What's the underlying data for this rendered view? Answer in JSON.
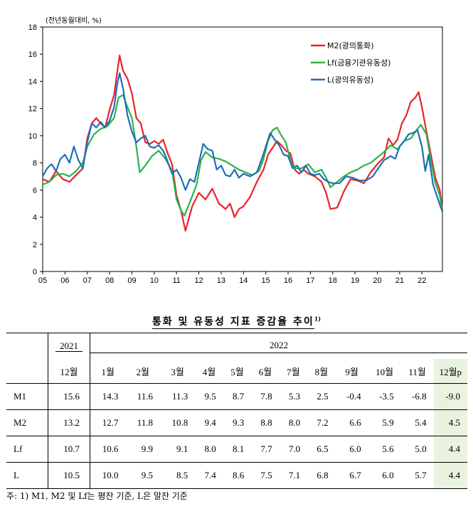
{
  "chart_data": {
    "type": "line",
    "unit_label": "(전년동월대비, %)",
    "ylim": [
      0,
      18
    ],
    "yticks": [
      0,
      2,
      4,
      6,
      8,
      10,
      12,
      14,
      16,
      18
    ],
    "xlim": [
      2005,
      2022.917
    ],
    "xtick_labels": [
      "05",
      "06",
      "07",
      "08",
      "09",
      "10",
      "11",
      "12",
      "13",
      "14",
      "15",
      "16",
      "17",
      "18",
      "19",
      "20",
      "21",
      "22"
    ],
    "legend_position": "top-right",
    "series": [
      {
        "name": "M2(광의통화)",
        "color": "#e8232a",
        "points": [
          [
            2005.0,
            6.8
          ],
          [
            2005.3,
            6.6
          ],
          [
            2005.6,
            7.4
          ],
          [
            2005.9,
            6.8
          ],
          [
            2006.2,
            6.6
          ],
          [
            2006.5,
            7.1
          ],
          [
            2006.8,
            7.6
          ],
          [
            2007.0,
            9.8
          ],
          [
            2007.2,
            10.9
          ],
          [
            2007.4,
            11.3
          ],
          [
            2007.6,
            10.9
          ],
          [
            2007.8,
            10.6
          ],
          [
            2008.0,
            11.9
          ],
          [
            2008.2,
            13.0
          ],
          [
            2008.35,
            14.8
          ],
          [
            2008.45,
            15.9
          ],
          [
            2008.6,
            14.8
          ],
          [
            2008.8,
            14.2
          ],
          [
            2009.0,
            13.1
          ],
          [
            2009.2,
            11.3
          ],
          [
            2009.4,
            10.9
          ],
          [
            2009.6,
            9.5
          ],
          [
            2009.8,
            9.4
          ],
          [
            2010.0,
            9.6
          ],
          [
            2010.2,
            9.4
          ],
          [
            2010.4,
            9.7
          ],
          [
            2010.6,
            8.7
          ],
          [
            2010.8,
            7.9
          ],
          [
            2011.0,
            5.6
          ],
          [
            2011.2,
            4.5
          ],
          [
            2011.4,
            3.0
          ],
          [
            2011.5,
            3.6
          ],
          [
            2011.7,
            4.8
          ],
          [
            2012.0,
            5.8
          ],
          [
            2012.3,
            5.3
          ],
          [
            2012.6,
            6.1
          ],
          [
            2012.9,
            5.0
          ],
          [
            2013.2,
            4.6
          ],
          [
            2013.4,
            5.0
          ],
          [
            2013.6,
            4.0
          ],
          [
            2013.8,
            4.6
          ],
          [
            2014.0,
            4.8
          ],
          [
            2014.3,
            5.5
          ],
          [
            2014.6,
            6.6
          ],
          [
            2014.9,
            7.5
          ],
          [
            2015.1,
            8.6
          ],
          [
            2015.3,
            9.1
          ],
          [
            2015.5,
            9.6
          ],
          [
            2015.7,
            9.3
          ],
          [
            2015.9,
            8.9
          ],
          [
            2016.1,
            8.7
          ],
          [
            2016.3,
            7.5
          ],
          [
            2016.5,
            7.2
          ],
          [
            2016.7,
            7.5
          ],
          [
            2016.9,
            7.2
          ],
          [
            2017.2,
            7.0
          ],
          [
            2017.5,
            6.6
          ],
          [
            2017.7,
            5.8
          ],
          [
            2017.9,
            4.6
          ],
          [
            2018.2,
            4.7
          ],
          [
            2018.5,
            5.9
          ],
          [
            2018.8,
            6.8
          ],
          [
            2019.1,
            6.7
          ],
          [
            2019.4,
            6.5
          ],
          [
            2019.7,
            7.3
          ],
          [
            2020.0,
            7.9
          ],
          [
            2020.3,
            8.4
          ],
          [
            2020.5,
            9.8
          ],
          [
            2020.7,
            9.3
          ],
          [
            2020.9,
            9.7
          ],
          [
            2021.1,
            10.9
          ],
          [
            2021.3,
            11.5
          ],
          [
            2021.5,
            12.5
          ],
          [
            2021.7,
            12.8
          ],
          [
            2021.85,
            13.2
          ],
          [
            2022.0,
            12.1
          ],
          [
            2022.2,
            10.3
          ],
          [
            2022.4,
            8.6
          ],
          [
            2022.6,
            6.9
          ],
          [
            2022.8,
            6.0
          ],
          [
            2022.917,
            4.5
          ]
        ]
      },
      {
        "name": "Lf(금융기관유동성)",
        "color": "#2bb24c",
        "points": [
          [
            2005.0,
            6.4
          ],
          [
            2005.3,
            6.6
          ],
          [
            2005.6,
            7.1
          ],
          [
            2005.9,
            7.2
          ],
          [
            2006.2,
            7.0
          ],
          [
            2006.5,
            7.4
          ],
          [
            2006.8,
            8.0
          ],
          [
            2007.0,
            9.2
          ],
          [
            2007.3,
            10.1
          ],
          [
            2007.6,
            10.5
          ],
          [
            2007.9,
            10.7
          ],
          [
            2008.2,
            11.3
          ],
          [
            2008.4,
            12.8
          ],
          [
            2008.6,
            13.0
          ],
          [
            2008.8,
            12.1
          ],
          [
            2009.0,
            11.3
          ],
          [
            2009.2,
            9.2
          ],
          [
            2009.35,
            7.3
          ],
          [
            2009.6,
            7.8
          ],
          [
            2009.9,
            8.5
          ],
          [
            2010.2,
            8.9
          ],
          [
            2010.5,
            8.3
          ],
          [
            2010.8,
            7.4
          ],
          [
            2011.0,
            5.3
          ],
          [
            2011.2,
            4.5
          ],
          [
            2011.35,
            4.1
          ],
          [
            2011.6,
            5.1
          ],
          [
            2011.9,
            6.4
          ],
          [
            2012.1,
            8.2
          ],
          [
            2012.3,
            8.8
          ],
          [
            2012.6,
            8.4
          ],
          [
            2012.9,
            8.3
          ],
          [
            2013.2,
            8.1
          ],
          [
            2013.5,
            7.8
          ],
          [
            2013.8,
            7.5
          ],
          [
            2014.1,
            7.3
          ],
          [
            2014.4,
            7.1
          ],
          [
            2014.7,
            7.4
          ],
          [
            2014.9,
            8.3
          ],
          [
            2015.1,
            9.6
          ],
          [
            2015.3,
            10.4
          ],
          [
            2015.5,
            10.6
          ],
          [
            2015.7,
            10.0
          ],
          [
            2015.9,
            9.5
          ],
          [
            2016.1,
            8.2
          ],
          [
            2016.3,
            7.6
          ],
          [
            2016.6,
            7.6
          ],
          [
            2016.9,
            7.9
          ],
          [
            2017.2,
            7.3
          ],
          [
            2017.5,
            7.5
          ],
          [
            2017.7,
            6.9
          ],
          [
            2017.9,
            6.2
          ],
          [
            2018.2,
            6.6
          ],
          [
            2018.5,
            7.0
          ],
          [
            2018.8,
            7.3
          ],
          [
            2019.1,
            7.5
          ],
          [
            2019.4,
            7.8
          ],
          [
            2019.7,
            8.0
          ],
          [
            2020.0,
            8.4
          ],
          [
            2020.3,
            8.8
          ],
          [
            2020.6,
            9.3
          ],
          [
            2020.9,
            9.0
          ],
          [
            2021.2,
            9.6
          ],
          [
            2021.5,
            9.8
          ],
          [
            2021.8,
            10.5
          ],
          [
            2021.95,
            10.8
          ],
          [
            2022.2,
            10.1
          ],
          [
            2022.4,
            8.2
          ],
          [
            2022.6,
            6.5
          ],
          [
            2022.8,
            5.6
          ],
          [
            2022.917,
            4.4
          ]
        ]
      },
      {
        "name": "L(광의유동성)",
        "color": "#1f6fb7",
        "points": [
          [
            2005.0,
            7.0
          ],
          [
            2005.2,
            7.6
          ],
          [
            2005.4,
            7.9
          ],
          [
            2005.6,
            7.4
          ],
          [
            2005.8,
            8.3
          ],
          [
            2006.0,
            8.6
          ],
          [
            2006.2,
            8.0
          ],
          [
            2006.4,
            9.2
          ],
          [
            2006.6,
            8.2
          ],
          [
            2006.8,
            7.6
          ],
          [
            2007.0,
            9.5
          ],
          [
            2007.2,
            10.9
          ],
          [
            2007.4,
            10.6
          ],
          [
            2007.6,
            11.0
          ],
          [
            2007.8,
            10.6
          ],
          [
            2008.0,
            11.1
          ],
          [
            2008.2,
            12.1
          ],
          [
            2008.35,
            13.9
          ],
          [
            2008.45,
            14.6
          ],
          [
            2008.6,
            13.5
          ],
          [
            2008.8,
            11.5
          ],
          [
            2009.0,
            10.3
          ],
          [
            2009.2,
            9.5
          ],
          [
            2009.4,
            9.8
          ],
          [
            2009.6,
            10.0
          ],
          [
            2009.8,
            9.2
          ],
          [
            2010.0,
            9.1
          ],
          [
            2010.2,
            9.3
          ],
          [
            2010.4,
            8.9
          ],
          [
            2010.6,
            8.1
          ],
          [
            2010.8,
            7.2
          ],
          [
            2011.0,
            7.5
          ],
          [
            2011.2,
            6.9
          ],
          [
            2011.4,
            6.0
          ],
          [
            2011.6,
            6.8
          ],
          [
            2011.8,
            6.6
          ],
          [
            2012.0,
            8.0
          ],
          [
            2012.2,
            9.4
          ],
          [
            2012.4,
            9.0
          ],
          [
            2012.6,
            8.9
          ],
          [
            2012.8,
            7.5
          ],
          [
            2013.0,
            7.8
          ],
          [
            2013.2,
            7.1
          ],
          [
            2013.4,
            7.0
          ],
          [
            2013.6,
            7.5
          ],
          [
            2013.8,
            6.9
          ],
          [
            2014.0,
            7.2
          ],
          [
            2014.3,
            7.0
          ],
          [
            2014.6,
            7.3
          ],
          [
            2014.8,
            8.2
          ],
          [
            2015.0,
            9.2
          ],
          [
            2015.2,
            10.2
          ],
          [
            2015.4,
            9.7
          ],
          [
            2015.6,
            9.3
          ],
          [
            2015.8,
            8.6
          ],
          [
            2016.0,
            8.5
          ],
          [
            2016.2,
            7.6
          ],
          [
            2016.4,
            7.8
          ],
          [
            2016.6,
            7.3
          ],
          [
            2016.8,
            7.8
          ],
          [
            2017.0,
            7.2
          ],
          [
            2017.2,
            7.1
          ],
          [
            2017.4,
            7.2
          ],
          [
            2017.6,
            6.8
          ],
          [
            2017.8,
            6.6
          ],
          [
            2018.0,
            6.5
          ],
          [
            2018.3,
            6.5
          ],
          [
            2018.6,
            7.0
          ],
          [
            2018.9,
            6.9
          ],
          [
            2019.2,
            6.7
          ],
          [
            2019.5,
            6.7
          ],
          [
            2019.8,
            7.0
          ],
          [
            2020.0,
            7.5
          ],
          [
            2020.3,
            8.2
          ],
          [
            2020.6,
            8.5
          ],
          [
            2020.8,
            8.3
          ],
          [
            2021.0,
            9.2
          ],
          [
            2021.2,
            9.6
          ],
          [
            2021.4,
            10.1
          ],
          [
            2021.6,
            10.2
          ],
          [
            2021.8,
            10.4
          ],
          [
            2022.0,
            9.2
          ],
          [
            2022.15,
            7.4
          ],
          [
            2022.3,
            8.6
          ],
          [
            2022.5,
            6.4
          ],
          [
            2022.7,
            5.4
          ],
          [
            2022.917,
            4.4
          ]
        ]
      }
    ]
  },
  "table": {
    "title": "통화 및 유동성 지표 증감율 추이",
    "title_note": "1)",
    "year_2021": "2021",
    "year_2022": "2022",
    "months": [
      "12월",
      "1월",
      "2월",
      "3월",
      "4월",
      "5월",
      "6월",
      "7월",
      "8월",
      "9월",
      "10월",
      "11월",
      "12월p"
    ],
    "rows": [
      {
        "label": "M1",
        "values": [
          "15.6",
          "14.3",
          "11.6",
          "11.3",
          "9.5",
          "8.7",
          "7.8",
          "5.3",
          "2.5",
          "-0.4",
          "-3.5",
          "-6.8",
          "-9.0"
        ]
      },
      {
        "label": "M2",
        "values": [
          "13.2",
          "12.7",
          "11.8",
          "10.8",
          "9.4",
          "9.3",
          "8.8",
          "8.0",
          "7.2",
          "6.6",
          "5.9",
          "5.4",
          "4.5"
        ]
      },
      {
        "label": "Lf",
        "values": [
          "10.7",
          "10.6",
          "9.9",
          "9.1",
          "8.0",
          "8.1",
          "7.7",
          "7.0",
          "6.5",
          "6.0",
          "5.6",
          "5.0",
          "4.4"
        ]
      },
      {
        "label": "L",
        "values": [
          "10.5",
          "10.0",
          "9.5",
          "8.5",
          "7.4",
          "8.6",
          "7.5",
          "7.1",
          "6.8",
          "6.7",
          "6.0",
          "5.7",
          "4.4"
        ]
      }
    ],
    "footnote": "주: 1) M1, M2 및 Lf는 평잔 기준, L은 말잔 기준"
  }
}
